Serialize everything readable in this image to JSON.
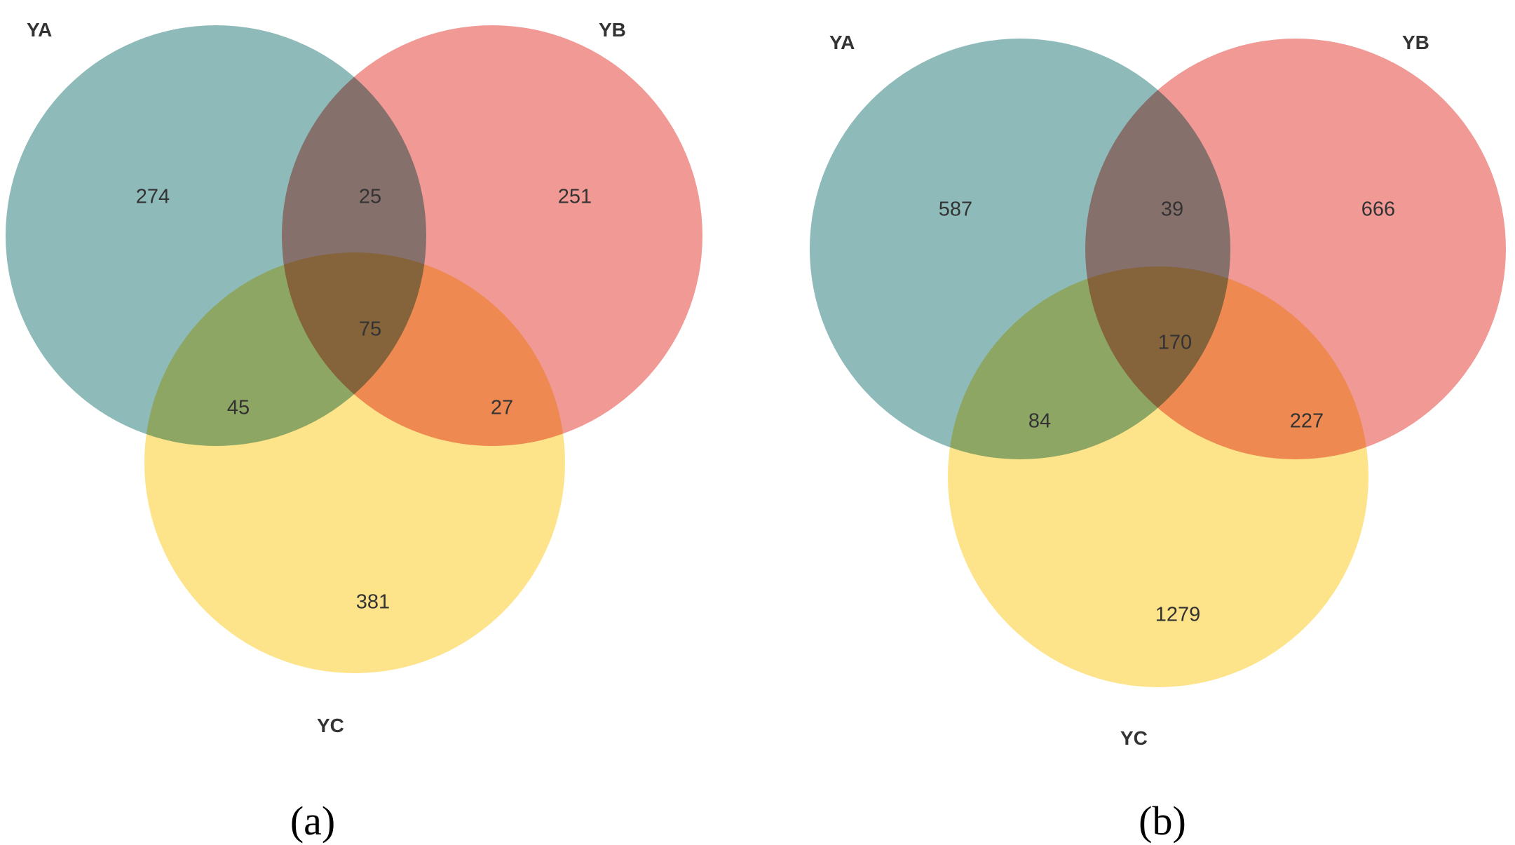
{
  "colors": {
    "YA": "#8ebab9",
    "YB": "#f09995",
    "YC": "#fde48a",
    "text": "#333333"
  },
  "panels": [
    {
      "caption": "(a)",
      "sets": {
        "YA": "YA",
        "YB": "YB",
        "YC": "YC"
      },
      "counts": {
        "A_only": "274",
        "AB": "25",
        "B_only": "251",
        "ABC": "75",
        "AC": "45",
        "BC": "27",
        "C_only": "381"
      }
    },
    {
      "caption": "(b)",
      "sets": {
        "YA": "YA",
        "YB": "YB",
        "YC": "YC"
      },
      "counts": {
        "A_only": "587",
        "AB": "39",
        "B_only": "666",
        "ABC": "170",
        "AC": "84",
        "BC": "227",
        "C_only": "1279"
      }
    }
  ]
}
